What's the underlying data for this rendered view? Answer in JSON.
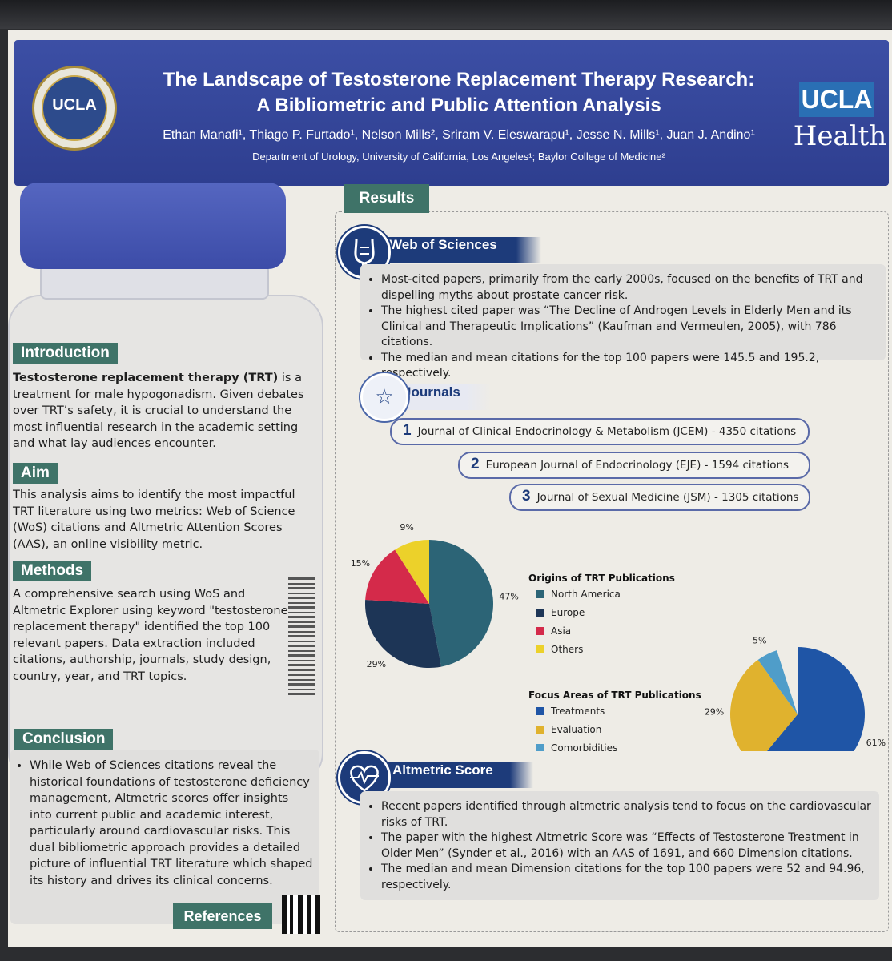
{
  "header": {
    "seal_text": "UCLA",
    "title_line1": "The Landscape of Testosterone Replacement Therapy Research:",
    "title_line2": "A Bibliometric and Public Attention Analysis",
    "authors": "Ethan Manafi¹, Thiago P. Furtado¹, Nelson Mills², Sriram V. Eleswarapu¹, Jesse N. Mills¹, Juan J. Andino¹",
    "affiliation": "Department of Urology, University of California, Los Angeles¹; Baylor College of Medicine²",
    "logo_ucla": "UCLA",
    "logo_health": "Health"
  },
  "introduction": {
    "label": "Introduction",
    "bold_text": "Testosterone replacement therapy (TRT)",
    "text": " is a treatment for male hypogonadism. Given debates over TRT’s safety, it is crucial to understand the most influential research in the academic setting and what lay audiences encounter."
  },
  "aim": {
    "label": "Aim",
    "text": "This analysis aims to identify the most impactful TRT literature using two metrics: Web of Science (WoS) citations and Altmetric Attention Scores (AAS), an online visibility metric."
  },
  "methods": {
    "label": "Methods",
    "text": "A comprehensive search using WoS and Altmetric Explorer using keyword \"testosterone replacement therapy\" identified the top 100 relevant papers. Data extraction included citations, authorship, journals, study design, country, year, and TRT topics."
  },
  "conclusion": {
    "label": "Conclusion",
    "text": "While Web of Sciences citations reveal the historical foundations of testosterone deficiency management, Altmetric scores offer insights into current public and academic interest, particularly around cardiovascular risks. This dual bibliometric approach provides a detailed picture of influential TRT literature which shaped its history and drives its clinical concerns."
  },
  "references": {
    "label": "References"
  },
  "results": {
    "label": "Results",
    "web_of_sciences": {
      "label": "Web of Sciences",
      "icon": "bladder-icon",
      "bullets": [
        "Most-cited papers, primarily from the early 2000s, focused on the benefits of TRT and dispelling myths about prostate cancer risk.",
        "The highest cited paper was “The Decline of Androgen Levels in Elderly Men and its Clinical and Therapeutic Implications” (Kaufman and Vermeulen, 2005), with 786 citations.",
        "The median and mean citations for the top 100 papers were 145.5 and 195.2, respectively."
      ]
    },
    "journals": {
      "label": "Journals",
      "icon": "star-icon",
      "items": [
        {
          "rank": "1",
          "text": "Journal of Clinical Endocrinology & Metabolism (JCEM) - 4350 citations"
        },
        {
          "rank": "2",
          "text": "European Journal of Endocrinology (EJE) - 1594 citations"
        },
        {
          "rank": "3",
          "text": "Journal of Sexual Medicine (JSM) - 1305 citations"
        }
      ]
    },
    "altmetric": {
      "label": "Altmetric Score",
      "icon": "heart-pulse-icon",
      "bullets": [
        "Recent papers identified through altmetric analysis tend to focus on the cardiovascular risks of TRT.",
        "The paper with the highest Altmetric Score was “Effects of Testosterone Treatment in Older Men” (Synder et al., 2016) with an AAS of 1691, and 660 Dimension citations.",
        "The median and mean Dimension citations for the top 100 papers were 52 and 94.96, respectively."
      ]
    }
  },
  "chart_data": [
    {
      "type": "pie",
      "title": "Origins of TRT Publications",
      "categories": [
        "North America",
        "Europe",
        "Asia",
        "Others"
      ],
      "values": [
        47,
        29,
        15,
        9
      ],
      "labels": [
        "47%",
        "29%",
        "15%",
        "9%"
      ],
      "colors": [
        "#2c6476",
        "#1d3556",
        "#d42a4a",
        "#ecd12a"
      ],
      "legend_position": "right"
    },
    {
      "type": "pie",
      "title": "Focus Areas of TRT Publications",
      "categories": [
        "Treatments",
        "Evaluation",
        "Comorbidities"
      ],
      "values": [
        61,
        29,
        5
      ],
      "labels": [
        "61%",
        "29%",
        "5%"
      ],
      "colors": [
        "#1f55a6",
        "#e0b22e",
        "#4f9dc9"
      ],
      "legend_position": "left"
    }
  ]
}
